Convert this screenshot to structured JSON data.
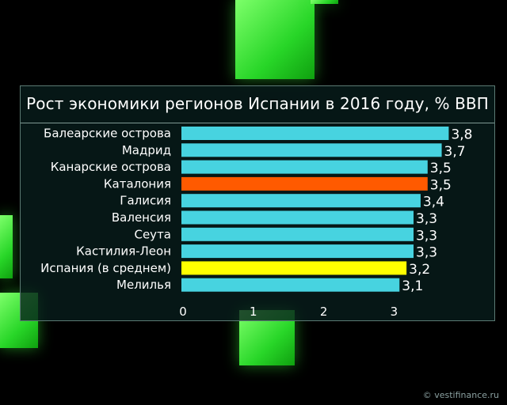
{
  "colors": {
    "bar_default": "#47d3e0",
    "bar_catalonia": "#ff5a00",
    "bar_average": "#ffff00",
    "cube_green": "#33e033"
  },
  "watermark": "© vestifinance.ru",
  "chart_data": {
    "type": "bar",
    "orientation": "horizontal",
    "title": "Рост экономики регионов Испании в 2016 году, % ВВП",
    "xlabel": "",
    "ylabel": "",
    "xlim": [
      0,
      3.8
    ],
    "x_ticks": [
      "0",
      "1",
      "2",
      "3"
    ],
    "categories": [
      "Балеарские острова",
      "Мадрид",
      "Канарские острова",
      "Каталония",
      "Галисия",
      "Валенсия",
      "Сеута",
      "Кастилия-Леон",
      "Испания (в среднем)",
      "Мелилья"
    ],
    "values": [
      3.8,
      3.7,
      3.5,
      3.5,
      3.4,
      3.3,
      3.3,
      3.3,
      3.2,
      3.1
    ],
    "value_labels": [
      "3,8",
      "3,7",
      "3,5",
      "3,5",
      "3,4",
      "3,3",
      "3,3",
      "3,3",
      "3,2",
      "3,1"
    ],
    "highlights": {
      "Каталония": "#ff5a00",
      "Испания (в среднем)": "#ffff00"
    },
    "grid": false,
    "legend": "none"
  }
}
